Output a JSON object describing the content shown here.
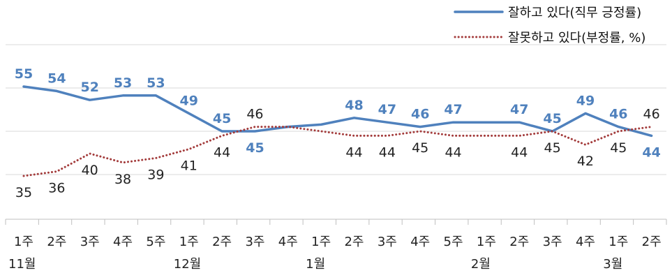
{
  "chart_data": {
    "type": "line",
    "categories": [
      "1주",
      "2주",
      "3주",
      "4주",
      "5주",
      "1주",
      "2주",
      "3주",
      "4주",
      "1주",
      "2주",
      "3주",
      "4주",
      "5주",
      "1주",
      "2주",
      "3주",
      "4주",
      "1주",
      "2주"
    ],
    "months": [
      {
        "label": "11월",
        "start": 0
      },
      {
        "label": "12월",
        "start": 5
      },
      {
        "label": "1월",
        "start": 9
      },
      {
        "label": "2월",
        "start": 14
      },
      {
        "label": "3월",
        "start": 18
      }
    ],
    "ylim": [
      20,
      75
    ],
    "series": [
      {
        "name": "잘하고 있다(직무 긍정률)",
        "color": "#4f81bd",
        "style": "solid",
        "values": [
          55,
          54,
          52,
          53,
          53,
          49,
          45,
          45,
          46,
          46.5,
          48,
          47,
          46,
          47,
          47,
          47,
          45,
          49,
          46,
          44
        ],
        "labels": [
          "55",
          "54",
          "52",
          "53",
          "53",
          "49",
          "45",
          "45",
          "",
          "",
          "48",
          "47",
          "46",
          "47",
          "",
          "47",
          "45",
          "49",
          "46",
          "44"
        ]
      },
      {
        "name": "잘못하고 있다(부정률, %)",
        "color": "#a33b3b",
        "style": "dotted",
        "values": [
          35,
          36,
          40,
          38,
          39,
          41,
          44,
          46,
          46,
          45,
          44,
          44,
          45,
          44,
          44,
          44,
          45,
          42,
          45,
          46
        ],
        "labels": [
          "35",
          "36",
          "40",
          "38",
          "39",
          "41",
          "44",
          "46",
          "",
          "",
          "44",
          "44",
          "45",
          "44",
          "",
          "44",
          "45",
          "42",
          "45",
          "46"
        ]
      }
    ],
    "grid": true,
    "legend": "top-right"
  }
}
